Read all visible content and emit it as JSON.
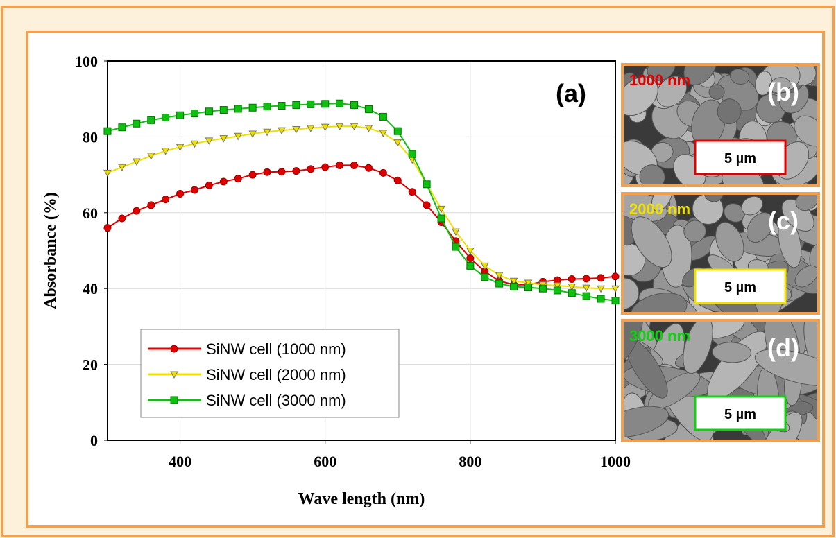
{
  "chart_data": {
    "type": "line",
    "annotation": "(a)",
    "x_label": "Wave length (nm)",
    "y_label": "Absorbance (%)",
    "x": [
      300,
      320,
      340,
      360,
      380,
      400,
      420,
      440,
      460,
      480,
      500,
      520,
      540,
      560,
      580,
      600,
      620,
      640,
      660,
      680,
      700,
      720,
      740,
      760,
      780,
      800,
      820,
      840,
      860,
      880,
      900,
      920,
      940,
      960,
      980,
      1000
    ],
    "series": [
      {
        "name": "SiNW cell (1000 nm)",
        "color": "#e00000",
        "marker": "circle",
        "values": [
          56,
          58.5,
          60.5,
          62,
          63.5,
          65,
          66,
          67.2,
          68.2,
          69,
          70,
          70.7,
          70.8,
          71,
          71.5,
          72,
          72.5,
          72.5,
          71.8,
          70.5,
          68.5,
          65.5,
          62,
          57.5,
          52.5,
          48,
          44.5,
          42,
          41,
          41,
          41.8,
          42.2,
          42.5,
          42.6,
          42.8,
          43.2
        ]
      },
      {
        "name": "SiNW cell (2000 nm)",
        "color": "#f0e000",
        "marker": "triangle-down",
        "values": [
          70.5,
          72,
          73.5,
          75,
          76.3,
          77.3,
          78.2,
          79,
          79.6,
          80.2,
          80.8,
          81.3,
          81.7,
          82,
          82.3,
          82.6,
          82.8,
          82.8,
          82.3,
          81,
          78.5,
          74,
          67.5,
          61,
          55,
          50,
          46,
          43.5,
          42,
          41.5,
          41,
          40.8,
          40.5,
          40.2,
          40,
          40
        ]
      },
      {
        "name": "SiNW cell (3000 nm)",
        "color": "#10c010",
        "marker": "square",
        "values": [
          81.5,
          82.5,
          83.5,
          84.4,
          85.1,
          85.7,
          86.2,
          86.7,
          87.1,
          87.4,
          87.7,
          88,
          88.2,
          88.4,
          88.6,
          88.7,
          88.8,
          88.4,
          87.3,
          85.3,
          81.5,
          75.5,
          67.5,
          58.5,
          51,
          46,
          43,
          41.3,
          40.5,
          40.3,
          40,
          39.5,
          38.8,
          38,
          37.3,
          36.8
        ]
      }
    ],
    "xlim": [
      300,
      1000
    ],
    "xticks": [
      400,
      600,
      800,
      1000
    ],
    "ylim": [
      0,
      100
    ],
    "yticks": [
      0,
      20,
      40,
      60,
      80,
      100
    ],
    "grid": true,
    "legend": "lower left"
  },
  "images": [
    {
      "label": "1000 nm",
      "color": "#e00000",
      "letter": "(b)",
      "scale": "5 µm"
    },
    {
      "label": "2000 nm",
      "color": "#f0e000",
      "letter": "(c)",
      "scale": "5 µm"
    },
    {
      "label": "3000 nm",
      "color": "#10d010",
      "letter": "(d)",
      "scale": "5 µm"
    }
  ]
}
